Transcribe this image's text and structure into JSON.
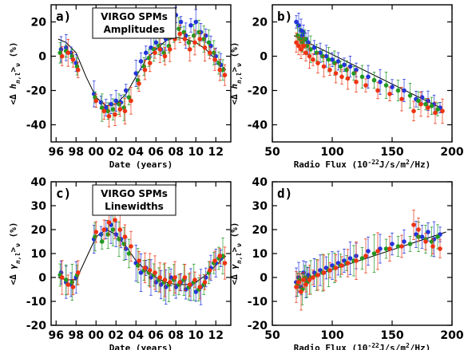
{
  "chart_data": [
    {
      "panel": "a)",
      "type": "scatter",
      "annotation_box": [
        "VIRGO SPMs",
        "Amplitudes"
      ],
      "xlabel": "Date (years)",
      "ylabel": "<Δ h_{n,l}>_ν (%)",
      "xlim": [
        95.5,
        113.5
      ],
      "ylim": [
        -50,
        30
      ],
      "xticklabels": [
        "96",
        "98",
        "00",
        "02",
        "04",
        "06",
        "08",
        "10",
        "12"
      ],
      "xtickvalues": [
        96,
        98,
        100,
        102,
        104,
        106,
        108,
        110,
        112
      ],
      "yticklabels": [
        "-40",
        "-20",
        "0",
        "20"
      ],
      "ytickvalues": [
        -40,
        -20,
        0,
        20
      ],
      "series": [
        {
          "color": "#2233dd",
          "x": [
            96.5,
            97,
            97.5,
            98,
            99.8,
            100.5,
            101,
            101.5,
            102,
            102.5,
            103,
            104,
            104.5,
            105,
            105.5,
            106,
            106.5,
            107,
            107.5,
            108,
            108.5,
            109,
            109.5,
            110,
            110.5,
            111,
            111.5,
            112,
            112.5
          ],
          "y": [
            4,
            5,
            2,
            -4,
            -22,
            -27,
            -30,
            -28,
            -26,
            -27,
            -20,
            -10,
            -3,
            2,
            5,
            8,
            4,
            10,
            18,
            24,
            20,
            12,
            18,
            20,
            14,
            12,
            6,
            0,
            -5
          ]
        },
        {
          "color": "#229922",
          "x": [
            96.4,
            97,
            97.6,
            98.1,
            99.9,
            100.6,
            101.2,
            101.7,
            102.3,
            102.8,
            103.3,
            104.2,
            104.8,
            105.3,
            105.8,
            106.3,
            106.8,
            107.3,
            107.8,
            108.3,
            108.8,
            109.3,
            109.8,
            110.3,
            110.8,
            111.3,
            111.8,
            112.3,
            112.7
          ],
          "y": [
            2,
            3,
            0,
            -6,
            -24,
            -30,
            -32,
            -31,
            -28,
            -30,
            -24,
            -14,
            -6,
            -1,
            4,
            6,
            2,
            6,
            12,
            16,
            14,
            8,
            12,
            14,
            10,
            8,
            2,
            -4,
            -8
          ]
        },
        {
          "color": "#ee3311",
          "x": [
            96.6,
            97.2,
            97.7,
            98.2,
            100,
            100.8,
            101.3,
            101.9,
            102.4,
            102.9,
            103.5,
            104.3,
            104.9,
            105.4,
            105.9,
            106.4,
            106.9,
            107.4,
            107.9,
            108.4,
            108.9,
            109.4,
            109.9,
            110.4,
            110.9,
            111.4,
            111.9,
            112.4,
            112.9
          ],
          "y": [
            0,
            2,
            -2,
            -8,
            -26,
            -32,
            -35,
            -34,
            -31,
            -32,
            -26,
            -16,
            -8,
            -4,
            2,
            4,
            0,
            4,
            10,
            13,
            10,
            4,
            8,
            10,
            5,
            2,
            -2,
            -8,
            -11
          ]
        }
      ],
      "fit": {
        "x": [
          96.2,
          97,
          98,
          99,
          100,
          101,
          102,
          103,
          104,
          105,
          106,
          107,
          108,
          109,
          110,
          111,
          112,
          113
        ],
        "y": [
          10,
          8,
          2,
          -12,
          -24,
          -29,
          -28,
          -22,
          -12,
          -2,
          4,
          9,
          11,
          10,
          8,
          4,
          -2,
          -8
        ]
      }
    },
    {
      "panel": "b)",
      "type": "scatter",
      "xlabel": "Radio Flux (10^-22 J/s/m^2/Hz)",
      "ylabel": "<Δ h_{n,l}>_ν (%)",
      "xlim": [
        50,
        200
      ],
      "ylim": [
        -50,
        30
      ],
      "xticklabels": [
        "50",
        "100",
        "150",
        "200"
      ],
      "xtickvalues": [
        50,
        100,
        150,
        200
      ],
      "yticklabels": [
        "-40",
        "-20",
        "0",
        "20"
      ],
      "ytickvalues": [
        -40,
        -20,
        0,
        20
      ],
      "series": [
        {
          "color": "#2233dd",
          "x": [
            70,
            72,
            74,
            75,
            76,
            78,
            80,
            85,
            90,
            95,
            100,
            105,
            110,
            115,
            120,
            130,
            140,
            150,
            160,
            170,
            175,
            180,
            185,
            190
          ],
          "y": [
            20,
            18,
            15,
            12,
            14,
            10,
            8,
            5,
            2,
            0,
            -2,
            -3,
            -5,
            -6,
            -8,
            -12,
            -15,
            -18,
            -20,
            -25,
            -24,
            -26,
            -28,
            -30
          ]
        },
        {
          "color": "#229922",
          "x": [
            71,
            73,
            75,
            77,
            79,
            82,
            87,
            92,
            97,
            102,
            107,
            112,
            118,
            125,
            135,
            145,
            155,
            165,
            172,
            178,
            183,
            188
          ],
          "y": [
            12,
            10,
            8,
            10,
            6,
            4,
            2,
            0,
            -2,
            -4,
            -6,
            -8,
            -10,
            -12,
            -14,
            -17,
            -20,
            -23,
            -26,
            -28,
            -29,
            -31
          ]
        },
        {
          "color": "#ee3311",
          "x": [
            70,
            72,
            74,
            76,
            78,
            81,
            84,
            88,
            93,
            98,
            103,
            108,
            113,
            120,
            128,
            138,
            148,
            158,
            168,
            174,
            180,
            186,
            192
          ],
          "y": [
            8,
            6,
            4,
            6,
            2,
            0,
            -2,
            -4,
            -6,
            -8,
            -10,
            -12,
            -13,
            -15,
            -17,
            -20,
            -22,
            -25,
            -32,
            -28,
            -30,
            -33,
            -32
          ]
        }
      ],
      "fit": {
        "x": [
          68,
          190
        ],
        "y": [
          12,
          -30
        ]
      }
    },
    {
      "panel": "c)",
      "type": "scatter",
      "annotation_box": [
        "VIRGO SPMs",
        "Linewidths"
      ],
      "xlabel": "Date (years)",
      "ylabel": "<Δ γ_{n,l}>_ν (%)",
      "xlim": [
        95.5,
        113.5
      ],
      "ylim": [
        -20,
        40
      ],
      "xticklabels": [
        "96",
        "98",
        "00",
        "02",
        "04",
        "06",
        "08",
        "10",
        "12"
      ],
      "xtickvalues": [
        96,
        98,
        100,
        102,
        104,
        106,
        108,
        110,
        112
      ],
      "yticklabels": [
        "-20",
        "-10",
        "0",
        "10",
        "20",
        "30",
        "40"
      ],
      "ytickvalues": [
        -20,
        -10,
        0,
        10,
        20,
        30,
        40
      ],
      "series": [
        {
          "color": "#2233dd",
          "x": [
            96.5,
            97,
            97.5,
            98,
            99.8,
            100.5,
            101,
            101.5,
            102,
            102.5,
            103,
            104,
            104.5,
            105,
            105.5,
            106,
            106.5,
            107,
            107.5,
            108,
            108.5,
            109,
            109.5,
            110,
            110.5,
            111,
            111.5,
            112,
            112.5
          ],
          "y": [
            2,
            -2,
            -3,
            0,
            16,
            18,
            20,
            22,
            18,
            16,
            12,
            6,
            2,
            4,
            0,
            -2,
            -3,
            -4,
            0,
            -4,
            -2,
            -5,
            -3,
            -6,
            -4,
            0,
            4,
            6,
            8
          ]
        },
        {
          "color": "#229922",
          "x": [
            96.4,
            97,
            97.6,
            98.1,
            99.9,
            100.6,
            101.2,
            101.7,
            102.3,
            102.8,
            103.3,
            104.2,
            104.8,
            105.3,
            105.8,
            106.3,
            106.8,
            107.3,
            107.8,
            108.3,
            108.8,
            109.3,
            109.8,
            110.3,
            110.8,
            111.3,
            111.8,
            112.3,
            112.7
          ],
          "y": [
            1,
            -1,
            -2,
            1,
            17,
            15,
            18,
            20,
            16,
            14,
            10,
            5,
            3,
            2,
            1,
            -1,
            -2,
            -3,
            -1,
            -3,
            -1,
            -4,
            -2,
            -5,
            -3,
            2,
            6,
            8,
            9
          ]
        },
        {
          "color": "#ee3311",
          "x": [
            96.6,
            97.2,
            97.7,
            98.2,
            100,
            100.8,
            101.3,
            101.9,
            102.4,
            102.9,
            103.5,
            104.3,
            104.9,
            105.4,
            105.9,
            106.4,
            106.9,
            107.4,
            107.9,
            108.4,
            108.9,
            109.4,
            109.9,
            110.4,
            110.9,
            111.4,
            111.9,
            112.4,
            112.9
          ],
          "y": [
            0,
            -3,
            -4,
            2,
            19,
            20,
            23,
            24,
            20,
            17,
            13,
            7,
            4,
            3,
            2,
            0,
            -1,
            -2,
            0,
            -2,
            0,
            -3,
            -1,
            -4,
            -2,
            3,
            7,
            9,
            6
          ]
        }
      ],
      "fit": {
        "x": [
          96.2,
          97,
          98,
          99,
          100,
          101,
          102,
          103,
          104,
          105,
          106,
          107,
          108,
          109,
          110,
          111,
          112,
          113
        ],
        "y": [
          0,
          -1,
          -1,
          8,
          17,
          20,
          18,
          13,
          7,
          3,
          0,
          -2,
          -3,
          -3,
          -2,
          1,
          5,
          9
        ]
      }
    },
    {
      "panel": "d)",
      "type": "scatter",
      "xlabel": "Radio Flux (10^-22 J/s/m^2/Hz)",
      "ylabel": "<Δ γ_{n,l}>_ν (%)",
      "xlim": [
        50,
        200
      ],
      "ylim": [
        -20,
        40
      ],
      "xticklabels": [
        "50",
        "100",
        "150",
        "200"
      ],
      "xtickvalues": [
        50,
        100,
        150,
        200
      ],
      "yticklabels": [
        "-20",
        "-10",
        "0",
        "10",
        "20",
        "30",
        "40"
      ],
      "ytickvalues": [
        -20,
        -10,
        0,
        10,
        20,
        30,
        40
      ],
      "series": [
        {
          "color": "#2233dd",
          "x": [
            70,
            72,
            74,
            76,
            78,
            80,
            85,
            90,
            95,
            100,
            105,
            110,
            115,
            120,
            130,
            140,
            150,
            160,
            170,
            175,
            180,
            185,
            190
          ],
          "y": [
            -2,
            0,
            -4,
            2,
            -1,
            1,
            2,
            3,
            4,
            5,
            6,
            7,
            8,
            9,
            11,
            12,
            14,
            15,
            18,
            17,
            19,
            16,
            18
          ]
        },
        {
          "color": "#229922",
          "x": [
            71,
            73,
            75,
            77,
            79,
            82,
            87,
            92,
            97,
            102,
            107,
            112,
            118,
            125,
            135,
            145,
            155,
            165,
            172,
            178,
            183,
            188
          ],
          "y": [
            -3,
            -1,
            -5,
            0,
            -2,
            0,
            1,
            2,
            3,
            4,
            5,
            6,
            7,
            8,
            10,
            12,
            13,
            14,
            17,
            16,
            15,
            17
          ]
        },
        {
          "color": "#ee3311",
          "x": [
            70,
            72,
            74,
            76,
            78,
            81,
            84,
            88,
            93,
            98,
            103,
            108,
            113,
            120,
            128,
            138,
            148,
            158,
            168,
            172,
            178,
            184,
            190
          ],
          "y": [
            -4,
            -2,
            -6,
            -1,
            -3,
            -1,
            0,
            1,
            2,
            3,
            4,
            5,
            6,
            7,
            9,
            11,
            12,
            13,
            22,
            20,
            15,
            13,
            12
          ]
        }
      ],
      "fit": {
        "x": [
          68,
          195
        ],
        "y": [
          -2,
          19
        ]
      }
    }
  ]
}
